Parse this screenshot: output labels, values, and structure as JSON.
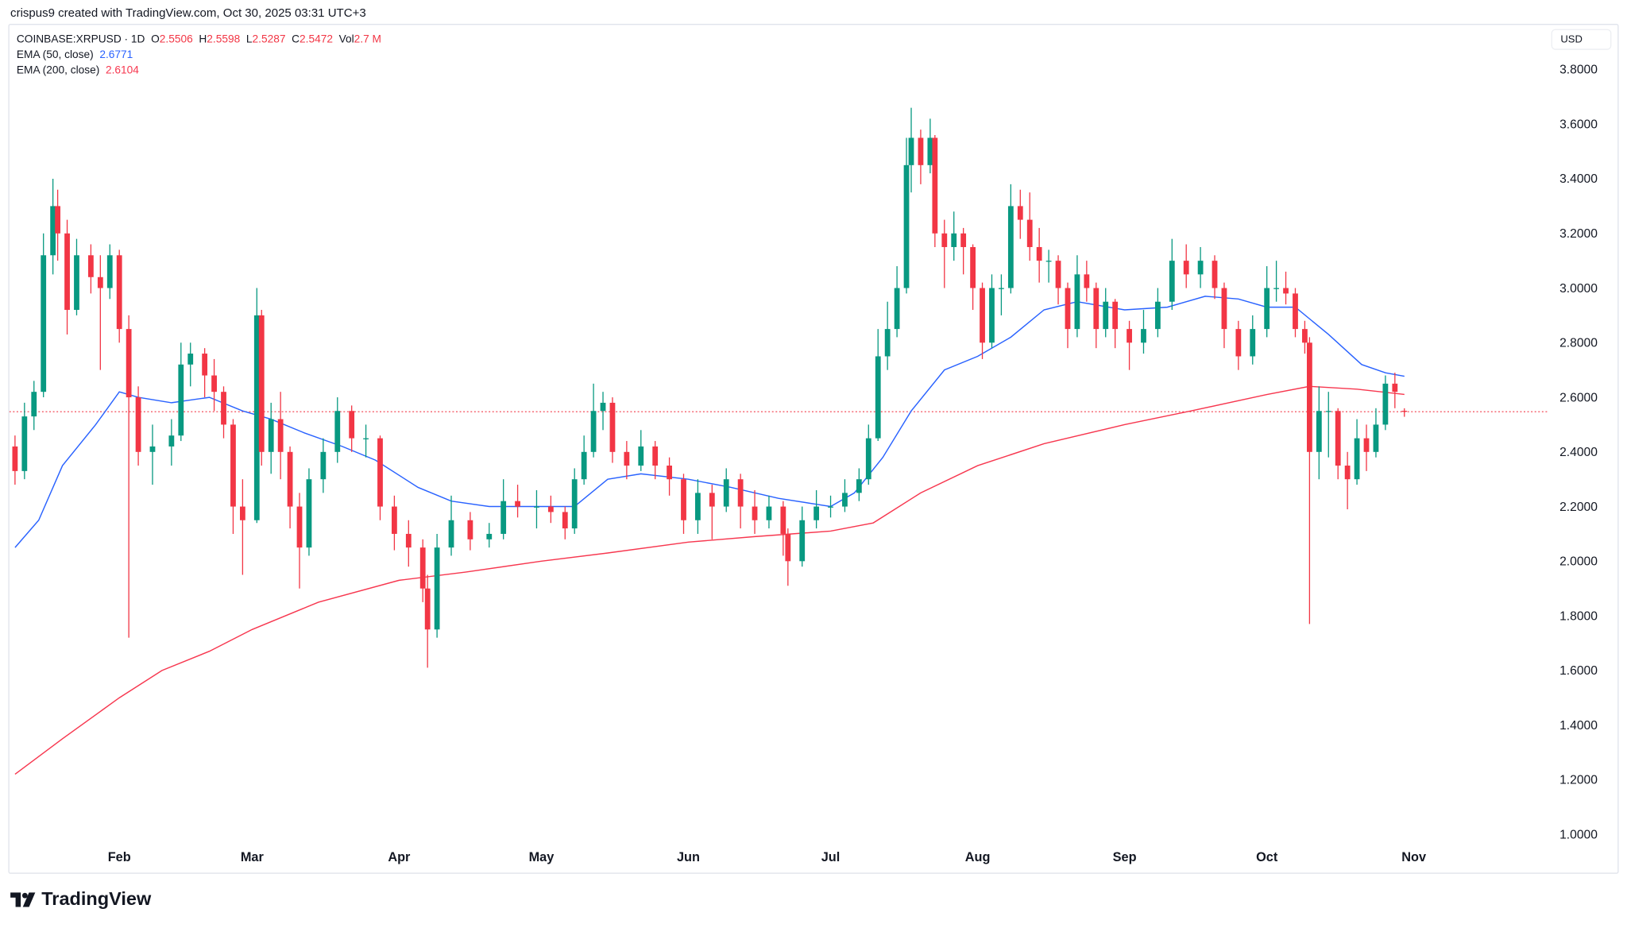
{
  "credit": "crispus9 created with TradingView.com, Oct 30, 2025 03:31 UTC+3",
  "legend": {
    "symbol": "COINBASE:XRPUSD · 1D",
    "o_label": "O",
    "o": "2.5506",
    "h_label": "H",
    "h": "2.5598",
    "l_label": "L",
    "l": "2.5287",
    "c_label": "C",
    "c": "2.5472",
    "vol_label": "Vol",
    "vol": "2.7 M",
    "ema50_label": "EMA (50, close)",
    "ema50_value": "2.6771",
    "ema200_label": "EMA (200, close)",
    "ema200_value": "2.6104"
  },
  "currency": "USD",
  "logo_text": "TradingView",
  "chart_data": {
    "type": "candlestick",
    "symbol": "COINBASE:XRPUSD",
    "interval": "1D",
    "ylim": [
      1.0,
      3.8
    ],
    "y_ticks": [
      "1.0000",
      "1.2000",
      "1.4000",
      "1.6000",
      "1.8000",
      "2.0000",
      "2.2000",
      "2.4000",
      "2.6000",
      "2.8000",
      "3.0000",
      "3.2000",
      "3.4000",
      "3.6000",
      "3.8000"
    ],
    "x_ticks": [
      {
        "label": "Feb",
        "date": "2025-02-01"
      },
      {
        "label": "Mar",
        "date": "2025-03-01"
      },
      {
        "label": "Apr",
        "date": "2025-04-01"
      },
      {
        "label": "May",
        "date": "2025-05-01"
      },
      {
        "label": "Jun",
        "date": "2025-06-01"
      },
      {
        "label": "Jul",
        "date": "2025-07-01"
      },
      {
        "label": "Aug",
        "date": "2025-08-01"
      },
      {
        "label": "Sep",
        "date": "2025-09-01"
      },
      {
        "label": "Oct",
        "date": "2025-10-01"
      },
      {
        "label": "Nov",
        "date": "2025-11-01"
      }
    ],
    "last_price": 2.5472,
    "colors": {
      "up": "#089981",
      "down": "#f23645",
      "ema50": "#2962ff",
      "ema200": "#f7374f",
      "last_price_line": "#f23645"
    },
    "candles_columns": [
      "date",
      "open",
      "high",
      "low",
      "close"
    ],
    "candles": [
      [
        "2025-01-10",
        2.42,
        2.46,
        2.28,
        2.33
      ],
      [
        "2025-01-12",
        2.33,
        2.58,
        2.3,
        2.53
      ],
      [
        "2025-01-14",
        2.53,
        2.66,
        2.48,
        2.62
      ],
      [
        "2025-01-16",
        2.62,
        3.2,
        2.6,
        3.12
      ],
      [
        "2025-01-18",
        3.12,
        3.4,
        3.05,
        3.3
      ],
      [
        "2025-01-19",
        3.3,
        3.36,
        3.1,
        3.2
      ],
      [
        "2025-01-21",
        3.2,
        3.25,
        2.83,
        2.92
      ],
      [
        "2025-01-23",
        2.92,
        3.18,
        2.9,
        3.12
      ],
      [
        "2025-01-26",
        3.12,
        3.16,
        2.98,
        3.04
      ],
      [
        "2025-01-28",
        3.04,
        3.12,
        2.7,
        3.0
      ],
      [
        "2025-01-30",
        3.0,
        3.16,
        2.96,
        3.12
      ],
      [
        "2025-02-01",
        3.12,
        3.14,
        2.8,
        2.85
      ],
      [
        "2025-02-03",
        2.85,
        2.9,
        1.72,
        2.6
      ],
      [
        "2025-02-05",
        2.6,
        2.64,
        2.35,
        2.4
      ],
      [
        "2025-02-08",
        2.4,
        2.5,
        2.28,
        2.42
      ],
      [
        "2025-02-12",
        2.42,
        2.52,
        2.35,
        2.46
      ],
      [
        "2025-02-14",
        2.46,
        2.8,
        2.44,
        2.72
      ],
      [
        "2025-02-16",
        2.72,
        2.8,
        2.64,
        2.76
      ],
      [
        "2025-02-19",
        2.76,
        2.78,
        2.6,
        2.68
      ],
      [
        "2025-02-21",
        2.68,
        2.74,
        2.55,
        2.62
      ],
      [
        "2025-02-23",
        2.62,
        2.64,
        2.45,
        2.5
      ],
      [
        "2025-02-25",
        2.5,
        2.52,
        2.1,
        2.2
      ],
      [
        "2025-02-27",
        2.2,
        2.3,
        1.95,
        2.15
      ],
      [
        "2025-03-02",
        2.15,
        3.0,
        2.14,
        2.9
      ],
      [
        "2025-03-03",
        2.9,
        2.92,
        2.35,
        2.4
      ],
      [
        "2025-03-05",
        2.4,
        2.58,
        2.32,
        2.52
      ],
      [
        "2025-03-07",
        2.52,
        2.62,
        2.3,
        2.4
      ],
      [
        "2025-03-09",
        2.4,
        2.42,
        2.12,
        2.2
      ],
      [
        "2025-03-11",
        2.2,
        2.25,
        1.9,
        2.05
      ],
      [
        "2025-03-13",
        2.05,
        2.34,
        2.02,
        2.3
      ],
      [
        "2025-03-16",
        2.3,
        2.45,
        2.25,
        2.4
      ],
      [
        "2025-03-19",
        2.4,
        2.6,
        2.36,
        2.55
      ],
      [
        "2025-03-22",
        2.55,
        2.57,
        2.4,
        2.45
      ],
      [
        "2025-03-25",
        2.45,
        2.5,
        2.38,
        2.45
      ],
      [
        "2025-03-28",
        2.45,
        2.46,
        2.15,
        2.2
      ],
      [
        "2025-03-31",
        2.2,
        2.24,
        2.04,
        2.1
      ],
      [
        "2025-04-03",
        2.1,
        2.15,
        1.98,
        2.05
      ],
      [
        "2025-04-06",
        2.05,
        2.08,
        1.85,
        1.9
      ],
      [
        "2025-04-07",
        1.9,
        1.95,
        1.61,
        1.75
      ],
      [
        "2025-04-09",
        1.75,
        2.1,
        1.72,
        2.05
      ],
      [
        "2025-04-12",
        2.05,
        2.24,
        2.02,
        2.15
      ],
      [
        "2025-04-16",
        2.15,
        2.18,
        2.04,
        2.08
      ],
      [
        "2025-04-20",
        2.08,
        2.14,
        2.05,
        2.1
      ],
      [
        "2025-04-23",
        2.1,
        2.3,
        2.08,
        2.22
      ],
      [
        "2025-04-26",
        2.22,
        2.28,
        2.16,
        2.2
      ],
      [
        "2025-04-30",
        2.2,
        2.26,
        2.12,
        2.2
      ],
      [
        "2025-05-03",
        2.2,
        2.24,
        2.14,
        2.18
      ],
      [
        "2025-05-06",
        2.18,
        2.2,
        2.08,
        2.12
      ],
      [
        "2025-05-08",
        2.12,
        2.34,
        2.1,
        2.3
      ],
      [
        "2025-05-10",
        2.3,
        2.46,
        2.28,
        2.4
      ],
      [
        "2025-05-12",
        2.4,
        2.65,
        2.38,
        2.55
      ],
      [
        "2025-05-14",
        2.55,
        2.62,
        2.48,
        2.58
      ],
      [
        "2025-05-16",
        2.58,
        2.6,
        2.36,
        2.4
      ],
      [
        "2025-05-19",
        2.4,
        2.44,
        2.3,
        2.35
      ],
      [
        "2025-05-22",
        2.35,
        2.48,
        2.33,
        2.42
      ],
      [
        "2025-05-25",
        2.42,
        2.44,
        2.3,
        2.35
      ],
      [
        "2025-05-28",
        2.35,
        2.38,
        2.24,
        2.3
      ],
      [
        "2025-05-31",
        2.3,
        2.32,
        2.1,
        2.15
      ],
      [
        "2025-06-03",
        2.15,
        2.3,
        2.1,
        2.25
      ],
      [
        "2025-06-06",
        2.25,
        2.28,
        2.08,
        2.2
      ],
      [
        "2025-06-09",
        2.2,
        2.34,
        2.18,
        2.3
      ],
      [
        "2025-06-12",
        2.3,
        2.32,
        2.12,
        2.2
      ],
      [
        "2025-06-15",
        2.2,
        2.26,
        2.1,
        2.15
      ],
      [
        "2025-06-18",
        2.15,
        2.24,
        2.12,
        2.2
      ],
      [
        "2025-06-21",
        2.2,
        2.22,
        2.02,
        2.1
      ],
      [
        "2025-06-22",
        2.1,
        2.12,
        1.91,
        2.0
      ],
      [
        "2025-06-25",
        2.0,
        2.2,
        1.98,
        2.15
      ],
      [
        "2025-06-28",
        2.15,
        2.26,
        2.12,
        2.2
      ],
      [
        "2025-07-01",
        2.2,
        2.24,
        2.16,
        2.2
      ],
      [
        "2025-07-04",
        2.2,
        2.3,
        2.18,
        2.25
      ],
      [
        "2025-07-07",
        2.25,
        2.34,
        2.22,
        2.3
      ],
      [
        "2025-07-09",
        2.3,
        2.5,
        2.28,
        2.45
      ],
      [
        "2025-07-11",
        2.45,
        2.85,
        2.44,
        2.75
      ],
      [
        "2025-07-13",
        2.75,
        2.95,
        2.7,
        2.85
      ],
      [
        "2025-07-15",
        2.85,
        3.08,
        2.82,
        3.0
      ],
      [
        "2025-07-17",
        3.0,
        3.55,
        2.98,
        3.45
      ],
      [
        "2025-07-18",
        3.45,
        3.66,
        3.35,
        3.55
      ],
      [
        "2025-07-20",
        3.55,
        3.58,
        3.38,
        3.45
      ],
      [
        "2025-07-22",
        3.45,
        3.62,
        3.42,
        3.55
      ],
      [
        "2025-07-23",
        3.55,
        3.56,
        3.15,
        3.2
      ],
      [
        "2025-07-25",
        3.2,
        3.25,
        3.0,
        3.15
      ],
      [
        "2025-07-27",
        3.15,
        3.28,
        3.1,
        3.2
      ],
      [
        "2025-07-29",
        3.2,
        3.22,
        3.05,
        3.15
      ],
      [
        "2025-07-31",
        3.15,
        3.16,
        2.92,
        3.0
      ],
      [
        "2025-08-02",
        3.0,
        3.02,
        2.74,
        2.8
      ],
      [
        "2025-08-04",
        2.8,
        3.05,
        2.78,
        3.0
      ],
      [
        "2025-08-06",
        3.0,
        3.05,
        2.9,
        3.0
      ],
      [
        "2025-08-08",
        3.0,
        3.38,
        2.98,
        3.3
      ],
      [
        "2025-08-10",
        3.3,
        3.36,
        3.18,
        3.25
      ],
      [
        "2025-08-12",
        3.25,
        3.35,
        3.1,
        3.15
      ],
      [
        "2025-08-14",
        3.15,
        3.22,
        3.02,
        3.1
      ],
      [
        "2025-08-16",
        3.1,
        3.14,
        3.02,
        3.1
      ],
      [
        "2025-08-18",
        3.1,
        3.12,
        2.94,
        3.0
      ],
      [
        "2025-08-20",
        3.0,
        3.02,
        2.78,
        2.85
      ],
      [
        "2025-08-22",
        2.85,
        3.12,
        2.82,
        3.05
      ],
      [
        "2025-08-24",
        3.05,
        3.1,
        2.95,
        3.0
      ],
      [
        "2025-08-26",
        3.0,
        3.02,
        2.78,
        2.85
      ],
      [
        "2025-08-28",
        2.85,
        3.0,
        2.82,
        2.95
      ],
      [
        "2025-08-30",
        2.95,
        2.96,
        2.78,
        2.85
      ],
      [
        "2025-09-02",
        2.85,
        2.88,
        2.7,
        2.8
      ],
      [
        "2025-09-05",
        2.8,
        2.92,
        2.76,
        2.85
      ],
      [
        "2025-09-08",
        2.85,
        3.0,
        2.82,
        2.95
      ],
      [
        "2025-09-11",
        2.95,
        3.18,
        2.92,
        3.1
      ],
      [
        "2025-09-14",
        3.1,
        3.16,
        3.0,
        3.05
      ],
      [
        "2025-09-17",
        3.05,
        3.15,
        3.0,
        3.1
      ],
      [
        "2025-09-20",
        3.1,
        3.12,
        2.96,
        3.0
      ],
      [
        "2025-09-22",
        3.0,
        3.02,
        2.78,
        2.85
      ],
      [
        "2025-09-25",
        2.85,
        2.88,
        2.7,
        2.75
      ],
      [
        "2025-09-28",
        2.75,
        2.9,
        2.72,
        2.85
      ],
      [
        "2025-10-01",
        2.85,
        3.08,
        2.82,
        3.0
      ],
      [
        "2025-10-03",
        3.0,
        3.1,
        2.95,
        3.0
      ],
      [
        "2025-10-05",
        3.0,
        3.06,
        2.94,
        2.98
      ],
      [
        "2025-10-07",
        2.98,
        3.0,
        2.82,
        2.85
      ],
      [
        "2025-10-09",
        2.85,
        2.88,
        2.76,
        2.8
      ],
      [
        "2025-10-10",
        2.8,
        2.82,
        1.77,
        2.4
      ],
      [
        "2025-10-12",
        2.4,
        2.64,
        2.3,
        2.55
      ],
      [
        "2025-10-14",
        2.55,
        2.62,
        2.38,
        2.55
      ],
      [
        "2025-10-16",
        2.55,
        2.56,
        2.3,
        2.35
      ],
      [
        "2025-10-18",
        2.35,
        2.4,
        2.19,
        2.3
      ],
      [
        "2025-10-20",
        2.3,
        2.52,
        2.28,
        2.45
      ],
      [
        "2025-10-22",
        2.45,
        2.5,
        2.33,
        2.4
      ],
      [
        "2025-10-24",
        2.4,
        2.56,
        2.38,
        2.5
      ],
      [
        "2025-10-26",
        2.5,
        2.68,
        2.48,
        2.65
      ],
      [
        "2025-10-28",
        2.65,
        2.69,
        2.56,
        2.62
      ],
      [
        "2025-10-30",
        2.5506,
        2.5598,
        2.5287,
        2.5472
      ]
    ],
    "series": [
      {
        "name": "EMA (50, close)",
        "points": [
          [
            "2025-01-10",
            2.05
          ],
          [
            "2025-01-15",
            2.15
          ],
          [
            "2025-01-20",
            2.35
          ],
          [
            "2025-01-27",
            2.5
          ],
          [
            "2025-02-01",
            2.62
          ],
          [
            "2025-02-05",
            2.6
          ],
          [
            "2025-02-12",
            2.58
          ],
          [
            "2025-02-20",
            2.6
          ],
          [
            "2025-02-27",
            2.55
          ],
          [
            "2025-03-05",
            2.52
          ],
          [
            "2025-03-12",
            2.47
          ],
          [
            "2025-03-20",
            2.42
          ],
          [
            "2025-03-27",
            2.37
          ],
          [
            "2025-04-05",
            2.27
          ],
          [
            "2025-04-12",
            2.22
          ],
          [
            "2025-04-20",
            2.2
          ],
          [
            "2025-04-30",
            2.2
          ],
          [
            "2025-05-08",
            2.2
          ],
          [
            "2025-05-15",
            2.3
          ],
          [
            "2025-05-22",
            2.32
          ],
          [
            "2025-06-01",
            2.3
          ],
          [
            "2025-06-10",
            2.27
          ],
          [
            "2025-06-20",
            2.23
          ],
          [
            "2025-07-01",
            2.2
          ],
          [
            "2025-07-06",
            2.25
          ],
          [
            "2025-07-12",
            2.38
          ],
          [
            "2025-07-18",
            2.55
          ],
          [
            "2025-07-25",
            2.7
          ],
          [
            "2025-08-01",
            2.75
          ],
          [
            "2025-08-08",
            2.82
          ],
          [
            "2025-08-15",
            2.92
          ],
          [
            "2025-08-22",
            2.95
          ],
          [
            "2025-09-01",
            2.92
          ],
          [
            "2025-09-10",
            2.93
          ],
          [
            "2025-09-18",
            2.97
          ],
          [
            "2025-09-25",
            2.96
          ],
          [
            "2025-10-01",
            2.93
          ],
          [
            "2025-10-07",
            2.93
          ],
          [
            "2025-10-14",
            2.83
          ],
          [
            "2025-10-21",
            2.72
          ],
          [
            "2025-10-26",
            2.69
          ],
          [
            "2025-10-30",
            2.6771
          ]
        ]
      },
      {
        "name": "EMA (200, close)",
        "points": [
          [
            "2025-01-10",
            1.22
          ],
          [
            "2025-01-20",
            1.35
          ],
          [
            "2025-02-01",
            1.5
          ],
          [
            "2025-02-10",
            1.6
          ],
          [
            "2025-02-20",
            1.67
          ],
          [
            "2025-03-01",
            1.75
          ],
          [
            "2025-03-15",
            1.85
          ],
          [
            "2025-04-01",
            1.93
          ],
          [
            "2025-04-15",
            1.96
          ],
          [
            "2025-05-01",
            2.0
          ],
          [
            "2025-05-15",
            2.03
          ],
          [
            "2025-06-01",
            2.07
          ],
          [
            "2025-06-15",
            2.09
          ],
          [
            "2025-07-01",
            2.11
          ],
          [
            "2025-07-10",
            2.14
          ],
          [
            "2025-07-20",
            2.25
          ],
          [
            "2025-08-01",
            2.35
          ],
          [
            "2025-08-15",
            2.43
          ],
          [
            "2025-09-01",
            2.5
          ],
          [
            "2025-09-15",
            2.55
          ],
          [
            "2025-10-01",
            2.61
          ],
          [
            "2025-10-10",
            2.64
          ],
          [
            "2025-10-20",
            2.63
          ],
          [
            "2025-10-30",
            2.6104
          ]
        ]
      }
    ],
    "grid": false
  }
}
